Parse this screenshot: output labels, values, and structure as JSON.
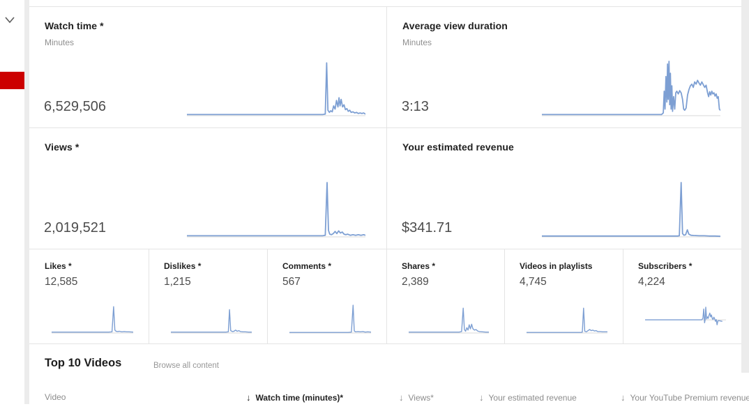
{
  "theme": {
    "accent_red": "#cc0000",
    "page_gray": "#ececec",
    "divider": "#e4e4e4",
    "spark_color": "#7d9fd3",
    "axis_color": "#d8d8d8",
    "title_color": "#202020",
    "value_color": "#4c4c4c",
    "muted_color": "#8f8f8f"
  },
  "sidebar": {
    "collapse_icon": "chevron-down"
  },
  "big_cards": [
    {
      "title": "Watch time *",
      "subtitle": "Minutes",
      "value": "6,529,506",
      "baseline": 0,
      "points": [
        [
          0,
          0.02
        ],
        [
          40,
          0.02
        ],
        [
          70,
          0.02
        ],
        [
          76,
          0.02
        ],
        [
          77.5,
          0.03
        ],
        [
          78.3,
          0.97
        ],
        [
          79,
          0.1
        ],
        [
          79.8,
          0.06
        ],
        [
          80.6,
          0.09
        ],
        [
          81.4,
          0.07
        ],
        [
          82.2,
          0.18
        ],
        [
          83,
          0.12
        ],
        [
          83.8,
          0.28
        ],
        [
          84.6,
          0.16
        ],
        [
          85.2,
          0.33
        ],
        [
          85.8,
          0.18
        ],
        [
          86.4,
          0.3
        ],
        [
          87.2,
          0.16
        ],
        [
          88,
          0.2
        ],
        [
          88.8,
          0.11
        ],
        [
          89.6,
          0.13
        ],
        [
          90.4,
          0.08
        ],
        [
          91.2,
          0.1
        ],
        [
          92,
          0.06
        ],
        [
          93,
          0.07
        ],
        [
          94,
          0.05
        ],
        [
          95,
          0.06
        ],
        [
          96,
          0.04
        ],
        [
          97,
          0.05
        ],
        [
          98,
          0.04
        ],
        [
          99,
          0.05
        ],
        [
          100,
          0.03
        ]
      ]
    },
    {
      "title": "Average view duration",
      "subtitle": "Minutes",
      "value": "3:13",
      "baseline": 0,
      "points": [
        [
          0,
          0.02
        ],
        [
          30,
          0.02
        ],
        [
          60,
          0.02
        ],
        [
          67,
          0.02
        ],
        [
          68,
          0.05
        ],
        [
          68.5,
          0.45
        ],
        [
          69,
          0.12
        ],
        [
          69.5,
          0.72
        ],
        [
          70,
          0.25
        ],
        [
          70.4,
          0.95
        ],
        [
          70.8,
          0.3
        ],
        [
          71.2,
          1.0
        ],
        [
          71.6,
          0.2
        ],
        [
          72,
          0.78
        ],
        [
          72.4,
          0.12
        ],
        [
          72.8,
          0.55
        ],
        [
          73.2,
          0.08
        ],
        [
          73.8,
          0.35
        ],
        [
          74.4,
          0.12
        ],
        [
          75,
          0.42
        ],
        [
          75.6,
          0.45
        ],
        [
          76.4,
          0.4
        ],
        [
          77.2,
          0.46
        ],
        [
          78,
          0.42
        ],
        [
          78.8,
          0.3
        ],
        [
          79.4,
          0.12
        ],
        [
          80,
          0.1
        ],
        [
          80.8,
          0.14
        ],
        [
          81.6,
          0.38
        ],
        [
          82.4,
          0.48
        ],
        [
          83.2,
          0.55
        ],
        [
          84,
          0.58
        ],
        [
          84.8,
          0.52
        ],
        [
          85.6,
          0.62
        ],
        [
          86.4,
          0.58
        ],
        [
          87.2,
          0.65
        ],
        [
          88,
          0.6
        ],
        [
          88.8,
          0.56
        ],
        [
          89.6,
          0.62
        ],
        [
          90.4,
          0.57
        ],
        [
          91.2,
          0.52
        ],
        [
          92,
          0.56
        ],
        [
          92.8,
          0.42
        ],
        [
          93.4,
          0.35
        ],
        [
          94,
          0.44
        ],
        [
          94.6,
          0.38
        ],
        [
          95.2,
          0.45
        ],
        [
          95.8,
          0.4
        ],
        [
          96.4,
          0.42
        ],
        [
          97,
          0.36
        ],
        [
          97.6,
          0.4
        ],
        [
          98.2,
          0.32
        ],
        [
          98.8,
          0.35
        ],
        [
          99.4,
          0.12
        ],
        [
          100,
          0.1
        ]
      ]
    },
    {
      "title": "Views *",
      "subtitle": "",
      "value": "2,019,521",
      "baseline": 0,
      "points": [
        [
          0,
          0.02
        ],
        [
          40,
          0.02
        ],
        [
          70,
          0.02
        ],
        [
          76,
          0.02
        ],
        [
          77.5,
          0.03
        ],
        [
          78.5,
          1.0
        ],
        [
          79.3,
          0.12
        ],
        [
          80,
          0.05
        ],
        [
          81,
          0.04
        ],
        [
          82,
          0.06
        ],
        [
          83,
          0.1
        ],
        [
          84,
          0.06
        ],
        [
          85,
          0.11
        ],
        [
          86,
          0.07
        ],
        [
          87,
          0.09
        ],
        [
          88,
          0.05
        ],
        [
          89,
          0.04
        ],
        [
          90,
          0.05
        ],
        [
          91.5,
          0.03
        ],
        [
          93,
          0.04
        ],
        [
          94.5,
          0.03
        ],
        [
          96,
          0.04
        ],
        [
          97.5,
          0.03
        ],
        [
          99,
          0.04
        ],
        [
          100,
          0.03
        ]
      ]
    },
    {
      "title": "Your estimated revenue",
      "subtitle": "",
      "value": "$341.71",
      "baseline": 0,
      "points": [
        [
          0,
          0.015
        ],
        [
          40,
          0.015
        ],
        [
          70,
          0.015
        ],
        [
          76,
          0.015
        ],
        [
          77,
          0.02
        ],
        [
          78,
          1.0
        ],
        [
          78.8,
          0.06
        ],
        [
          79.6,
          0.03
        ],
        [
          80.5,
          0.04
        ],
        [
          81.5,
          0.13
        ],
        [
          82.3,
          0.05
        ],
        [
          83.5,
          0.03
        ],
        [
          85,
          0.025
        ],
        [
          88,
          0.02
        ],
        [
          91,
          0.02
        ],
        [
          94,
          0.015
        ],
        [
          97,
          0.015
        ],
        [
          100,
          0.01
        ]
      ]
    }
  ],
  "small_cards": [
    {
      "title": "Likes *",
      "value": "12,585",
      "baseline": 0,
      "points": [
        [
          0,
          0.03
        ],
        [
          30,
          0.03
        ],
        [
          60,
          0.03
        ],
        [
          70,
          0.03
        ],
        [
          74,
          0.04
        ],
        [
          76,
          0.9
        ],
        [
          77.5,
          0.1
        ],
        [
          79,
          0.06
        ],
        [
          81,
          0.05
        ],
        [
          83,
          0.06
        ],
        [
          86,
          0.04
        ],
        [
          89,
          0.05
        ],
        [
          92,
          0.04
        ],
        [
          95,
          0.04
        ],
        [
          100,
          0.03
        ]
      ]
    },
    {
      "title": "Dislikes *",
      "value": "1,215",
      "baseline": 0,
      "points": [
        [
          0,
          0.03
        ],
        [
          30,
          0.03
        ],
        [
          60,
          0.03
        ],
        [
          68,
          0.03
        ],
        [
          71,
          0.04
        ],
        [
          72.5,
          0.8
        ],
        [
          74,
          0.08
        ],
        [
          76,
          0.05
        ],
        [
          78,
          0.06
        ],
        [
          80,
          0.1
        ],
        [
          82,
          0.06
        ],
        [
          84,
          0.08
        ],
        [
          86,
          0.05
        ],
        [
          89,
          0.04
        ],
        [
          92,
          0.04
        ],
        [
          96,
          0.03
        ],
        [
          100,
          0.03
        ]
      ]
    },
    {
      "title": "Comments *",
      "value": "567",
      "baseline": 0,
      "points": [
        [
          0,
          0.02
        ],
        [
          30,
          0.02
        ],
        [
          60,
          0.02
        ],
        [
          72,
          0.02
        ],
        [
          76,
          0.03
        ],
        [
          78,
          0.95
        ],
        [
          79.5,
          0.07
        ],
        [
          81,
          0.04
        ],
        [
          84,
          0.05
        ],
        [
          87,
          0.04
        ],
        [
          90,
          0.05
        ],
        [
          93,
          0.03
        ],
        [
          96,
          0.04
        ],
        [
          100,
          0.03
        ]
      ]
    },
    {
      "title": "Shares *",
      "value": "2,389",
      "baseline": 0,
      "points": [
        [
          0,
          0.03
        ],
        [
          30,
          0.03
        ],
        [
          55,
          0.03
        ],
        [
          63,
          0.03
        ],
        [
          66,
          0.05
        ],
        [
          68,
          0.85
        ],
        [
          69.5,
          0.12
        ],
        [
          71,
          0.06
        ],
        [
          72.5,
          0.18
        ],
        [
          74,
          0.1
        ],
        [
          75.5,
          0.28
        ],
        [
          77,
          0.14
        ],
        [
          78.5,
          0.3
        ],
        [
          80,
          0.15
        ],
        [
          82,
          0.1
        ],
        [
          84,
          0.12
        ],
        [
          86,
          0.07
        ],
        [
          88,
          0.05
        ],
        [
          92,
          0.04
        ],
        [
          96,
          0.03
        ],
        [
          100,
          0.03
        ]
      ]
    },
    {
      "title": "Videos in playlists",
      "value": "4,745",
      "baseline": 0,
      "points": [
        [
          0,
          0.02
        ],
        [
          30,
          0.02
        ],
        [
          60,
          0.02
        ],
        [
          67,
          0.02
        ],
        [
          69,
          0.03
        ],
        [
          70.5,
          0.85
        ],
        [
          72,
          0.06
        ],
        [
          74,
          0.04
        ],
        [
          76,
          0.08
        ],
        [
          78,
          0.12
        ],
        [
          80,
          0.08
        ],
        [
          82,
          0.1
        ],
        [
          84,
          0.07
        ],
        [
          86,
          0.08
        ],
        [
          88,
          0.05
        ],
        [
          91,
          0.05
        ],
        [
          94,
          0.04
        ],
        [
          100,
          0.04
        ]
      ]
    },
    {
      "title": "Subscribers *",
      "value": "4,224",
      "baseline": 0.45,
      "points": [
        [
          0,
          0.45
        ],
        [
          30,
          0.45
        ],
        [
          60,
          0.45
        ],
        [
          70,
          0.45
        ],
        [
          71.5,
          0.5
        ],
        [
          72.5,
          0.82
        ],
        [
          73.5,
          0.35
        ],
        [
          74.2,
          0.45
        ],
        [
          75,
          0.88
        ],
        [
          76,
          0.48
        ],
        [
          77,
          0.55
        ],
        [
          78,
          0.5
        ],
        [
          79,
          0.6
        ],
        [
          80,
          0.68
        ],
        [
          81,
          0.55
        ],
        [
          82,
          0.62
        ],
        [
          83,
          0.5
        ],
        [
          84,
          0.46
        ],
        [
          85,
          0.54
        ],
        [
          86,
          0.48
        ],
        [
          87,
          0.4
        ],
        [
          88,
          0.46
        ],
        [
          89,
          0.28
        ],
        [
          90,
          0.42
        ],
        [
          92,
          0.42
        ],
        [
          95,
          0.4
        ]
      ]
    }
  ],
  "top_videos": {
    "heading": "Top 10 Videos",
    "browse_link": "Browse all content",
    "sort_arrow": "↓",
    "columns": [
      {
        "label": "Video",
        "arrow": false,
        "active": false
      },
      {
        "label": "Watch time (minutes)*",
        "arrow": true,
        "active": true
      },
      {
        "label": "Views*",
        "arrow": true,
        "active": false
      },
      {
        "label": "Your estimated revenue",
        "arrow": true,
        "active": false
      },
      {
        "label": "Your YouTube Premium revenue",
        "arrow": true,
        "active": false
      }
    ]
  }
}
